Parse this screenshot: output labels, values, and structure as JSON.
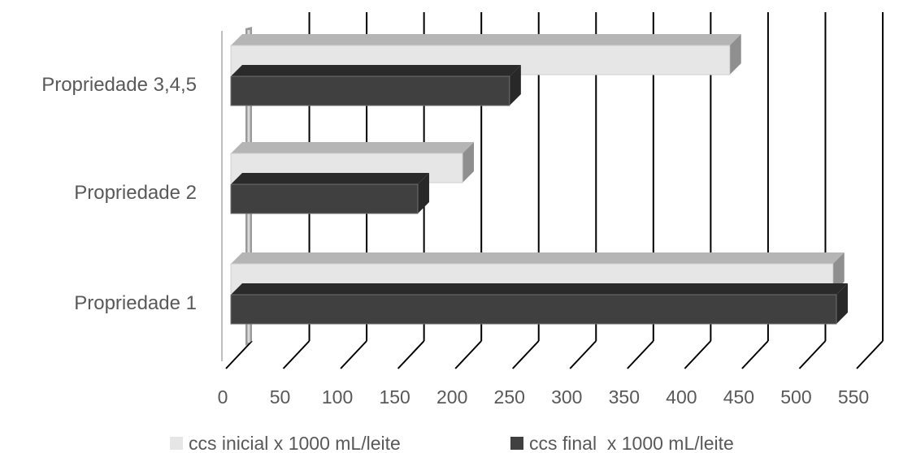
{
  "chart_data": {
    "type": "bar",
    "orientation": "horizontal",
    "style": "3d",
    "title": "",
    "xlabel": "",
    "ylabel": "",
    "categories": [
      "Propriedade 1",
      "Propriedade 2",
      "Propriedade 3,4,5"
    ],
    "series": [
      {
        "name": "ccs inicial x 1000 mL/leite",
        "values": [
          525,
          202,
          435
        ],
        "color": "#e6e6e6"
      },
      {
        "name": "ccs final  x 1000 mL/leite",
        "values": [
          528,
          163,
          243
        ],
        "color": "#404040"
      }
    ],
    "xlim": [
      0,
      550
    ],
    "xticks": [
      "0",
      "50",
      "100",
      "150",
      "200",
      "250",
      "300",
      "350",
      "400",
      "450",
      "500",
      "550"
    ],
    "grid": true,
    "legend_position": "bottom"
  }
}
